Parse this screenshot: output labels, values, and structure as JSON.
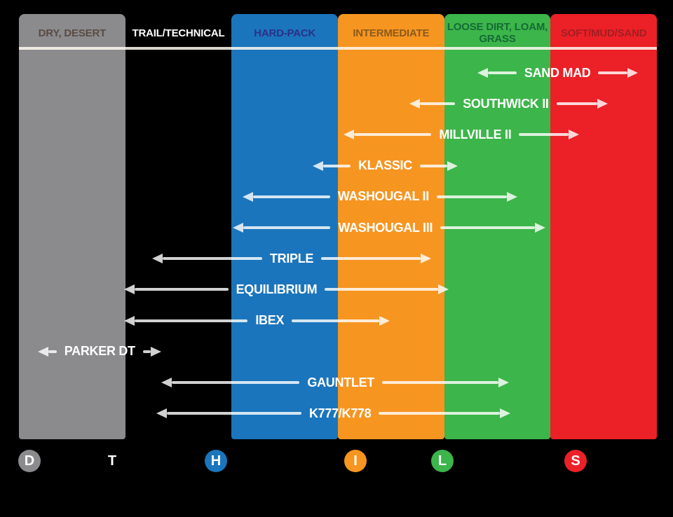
{
  "colors": {
    "background": "#000000",
    "arrow": "rgba(255,255,255,0.82)",
    "header_line": "rgba(255,250,240,0.85)",
    "label_text": "#FFFFFF"
  },
  "columns": [
    {
      "label": "DRY, DESERT",
      "badge": "D",
      "fill": "#8B8B8E",
      "header_text_color": "#5A4B42",
      "badge_text_color": "#FFFFFF"
    },
    {
      "label": "TRAIL/TECHNICAL",
      "badge": "T",
      "fill": "#000000",
      "header_text_color": "#FFFFFF",
      "badge_text_color": "#FFFFFF"
    },
    {
      "label": "HARD-PACK",
      "badge": "H",
      "fill": "#1B75BC",
      "header_text_color": "#2A3189",
      "badge_text_color": "#FFFFFF"
    },
    {
      "label": "INTERMEDIATE",
      "badge": "I",
      "fill": "#F79521",
      "header_text_color": "#8A5A1C",
      "badge_text_color": "#FFFFFF"
    },
    {
      "label": "LOOSE DIRT, LOAM,\nGRASS",
      "badge": "L",
      "fill": "#3CB54A",
      "header_text_color": "#156B35",
      "badge_text_color": "#FFFFFF"
    },
    {
      "label": "SOFT/MUD/SAND",
      "badge": "S",
      "fill": "#EC2027",
      "header_text_color": "#A21E23",
      "badge_text_color": "#FFFFFF"
    }
  ],
  "chart_data": {
    "type": "bar",
    "title": "",
    "orientation": "horizontal-range",
    "xlabel": "",
    "ylabel": "",
    "grid": false,
    "legend_position": "none",
    "categories": [
      "DRY, DESERT",
      "TRAIL/TECHNICAL",
      "HARD-PACK",
      "INTERMEDIATE",
      "LOOSE DIRT, LOAM, GRASS",
      "SOFT/MUD/SAND"
    ],
    "axis_note": "range units are terrain-column indices: 0 = left edge of DRY, DESERT; 6 = right edge of SOFT/MUD/SAND",
    "series": [
      {
        "name": "SAND MAD",
        "range": [
          4.31,
          5.82
        ]
      },
      {
        "name": "SOUTHWICK II",
        "range": [
          3.67,
          5.54
        ]
      },
      {
        "name": "MILLVILLE II",
        "range": [
          3.05,
          5.27
        ]
      },
      {
        "name": "KLASSIC",
        "range": [
          2.76,
          4.13
        ]
      },
      {
        "name": "WASHOUGAL II",
        "range": [
          2.1,
          4.69
        ]
      },
      {
        "name": "WASHOUGAL III",
        "range": [
          2.01,
          4.95
        ]
      },
      {
        "name": "TRIPLE",
        "range": [
          1.25,
          3.88
        ]
      },
      {
        "name": "EQUILIBRIUM",
        "range": [
          0.99,
          4.04
        ]
      },
      {
        "name": "IBEX",
        "range": [
          0.99,
          3.49
        ]
      },
      {
        "name": "PARKER DT",
        "range": [
          0.18,
          1.34
        ]
      },
      {
        "name": "GAUNTLET",
        "range": [
          1.34,
          4.61
        ]
      },
      {
        "name": "K777/K778",
        "range": [
          1.29,
          4.62
        ]
      }
    ]
  }
}
